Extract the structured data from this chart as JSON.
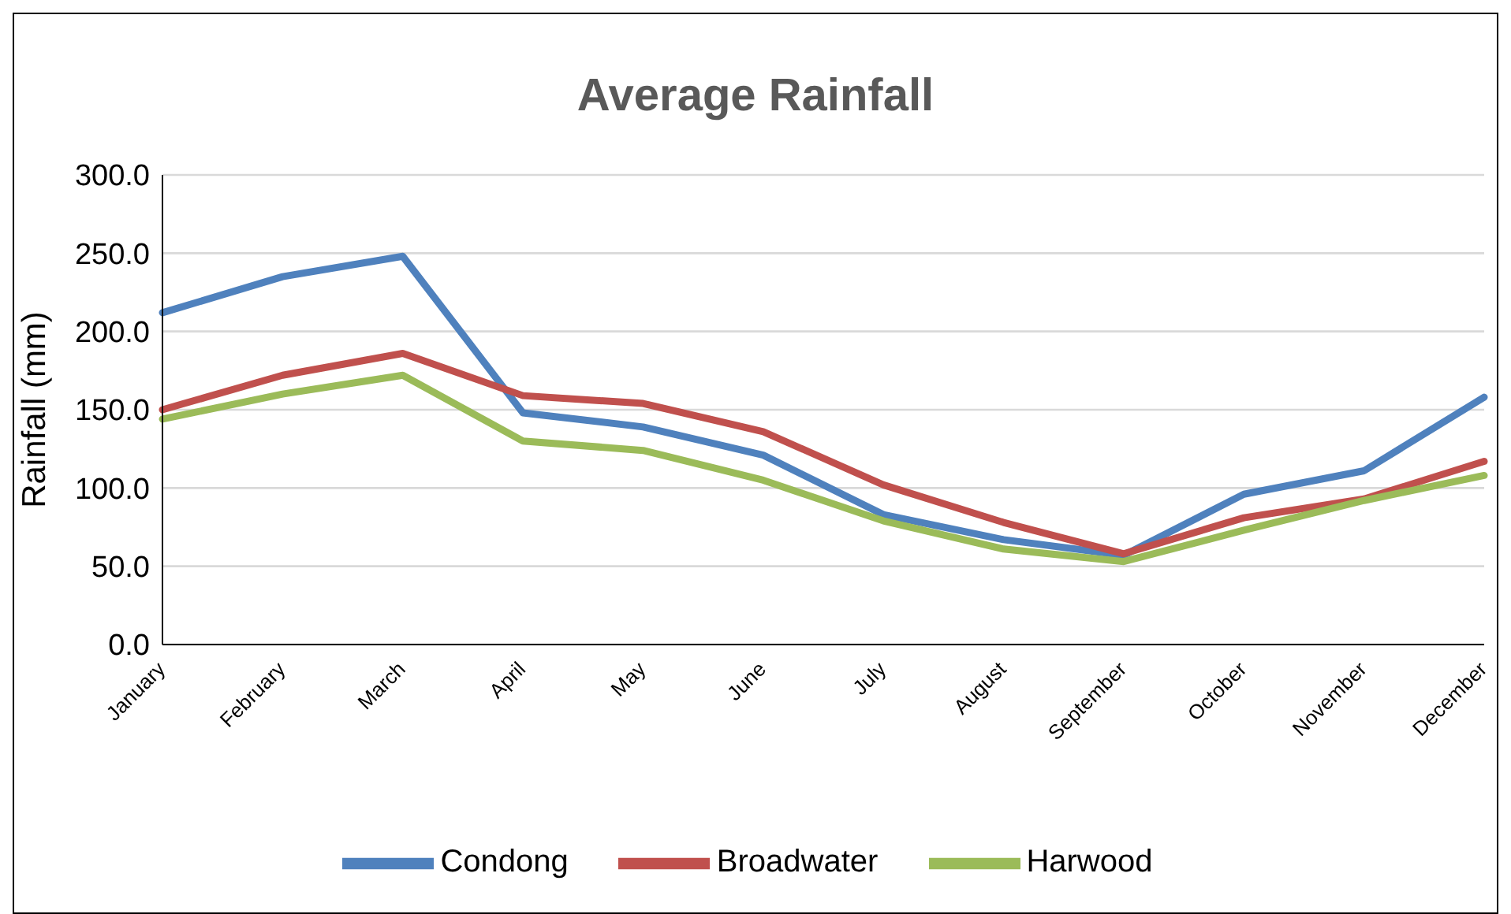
{
  "chart_data": {
    "type": "line",
    "title": "Average Rainfall",
    "ylabel": "Rainfall (mm)",
    "categories": [
      "January",
      "February",
      "March",
      "April",
      "May",
      "June",
      "July",
      "August",
      "September",
      "October",
      "November",
      "December"
    ],
    "series": [
      {
        "name": "Condong",
        "color": "#4f81bd",
        "values": [
          212,
          235,
          248,
          148,
          139,
          121,
          83,
          67,
          57,
          96,
          111,
          158
        ]
      },
      {
        "name": "Broadwater",
        "color": "#c0504d",
        "values": [
          150,
          172,
          186,
          159,
          154,
          136,
          102,
          78,
          58,
          81,
          93,
          117
        ]
      },
      {
        "name": "Harwood",
        "color": "#9bbb59",
        "values": [
          144,
          160,
          172,
          130,
          124,
          105,
          79,
          61,
          53,
          73,
          92,
          108
        ]
      }
    ],
    "ylim": [
      0,
      300
    ],
    "yticks": [
      {
        "value": 0,
        "label": "0.0"
      },
      {
        "value": 50,
        "label": "50.0"
      },
      {
        "value": 100,
        "label": "100.0"
      },
      {
        "value": 150,
        "label": "150.0"
      },
      {
        "value": 200,
        "label": "200.0"
      },
      {
        "value": 250,
        "label": "250.0"
      },
      {
        "value": 300,
        "label": "300.0"
      }
    ],
    "grid": "y",
    "legend": "bottom",
    "marker": "none",
    "line_style": "solid"
  }
}
